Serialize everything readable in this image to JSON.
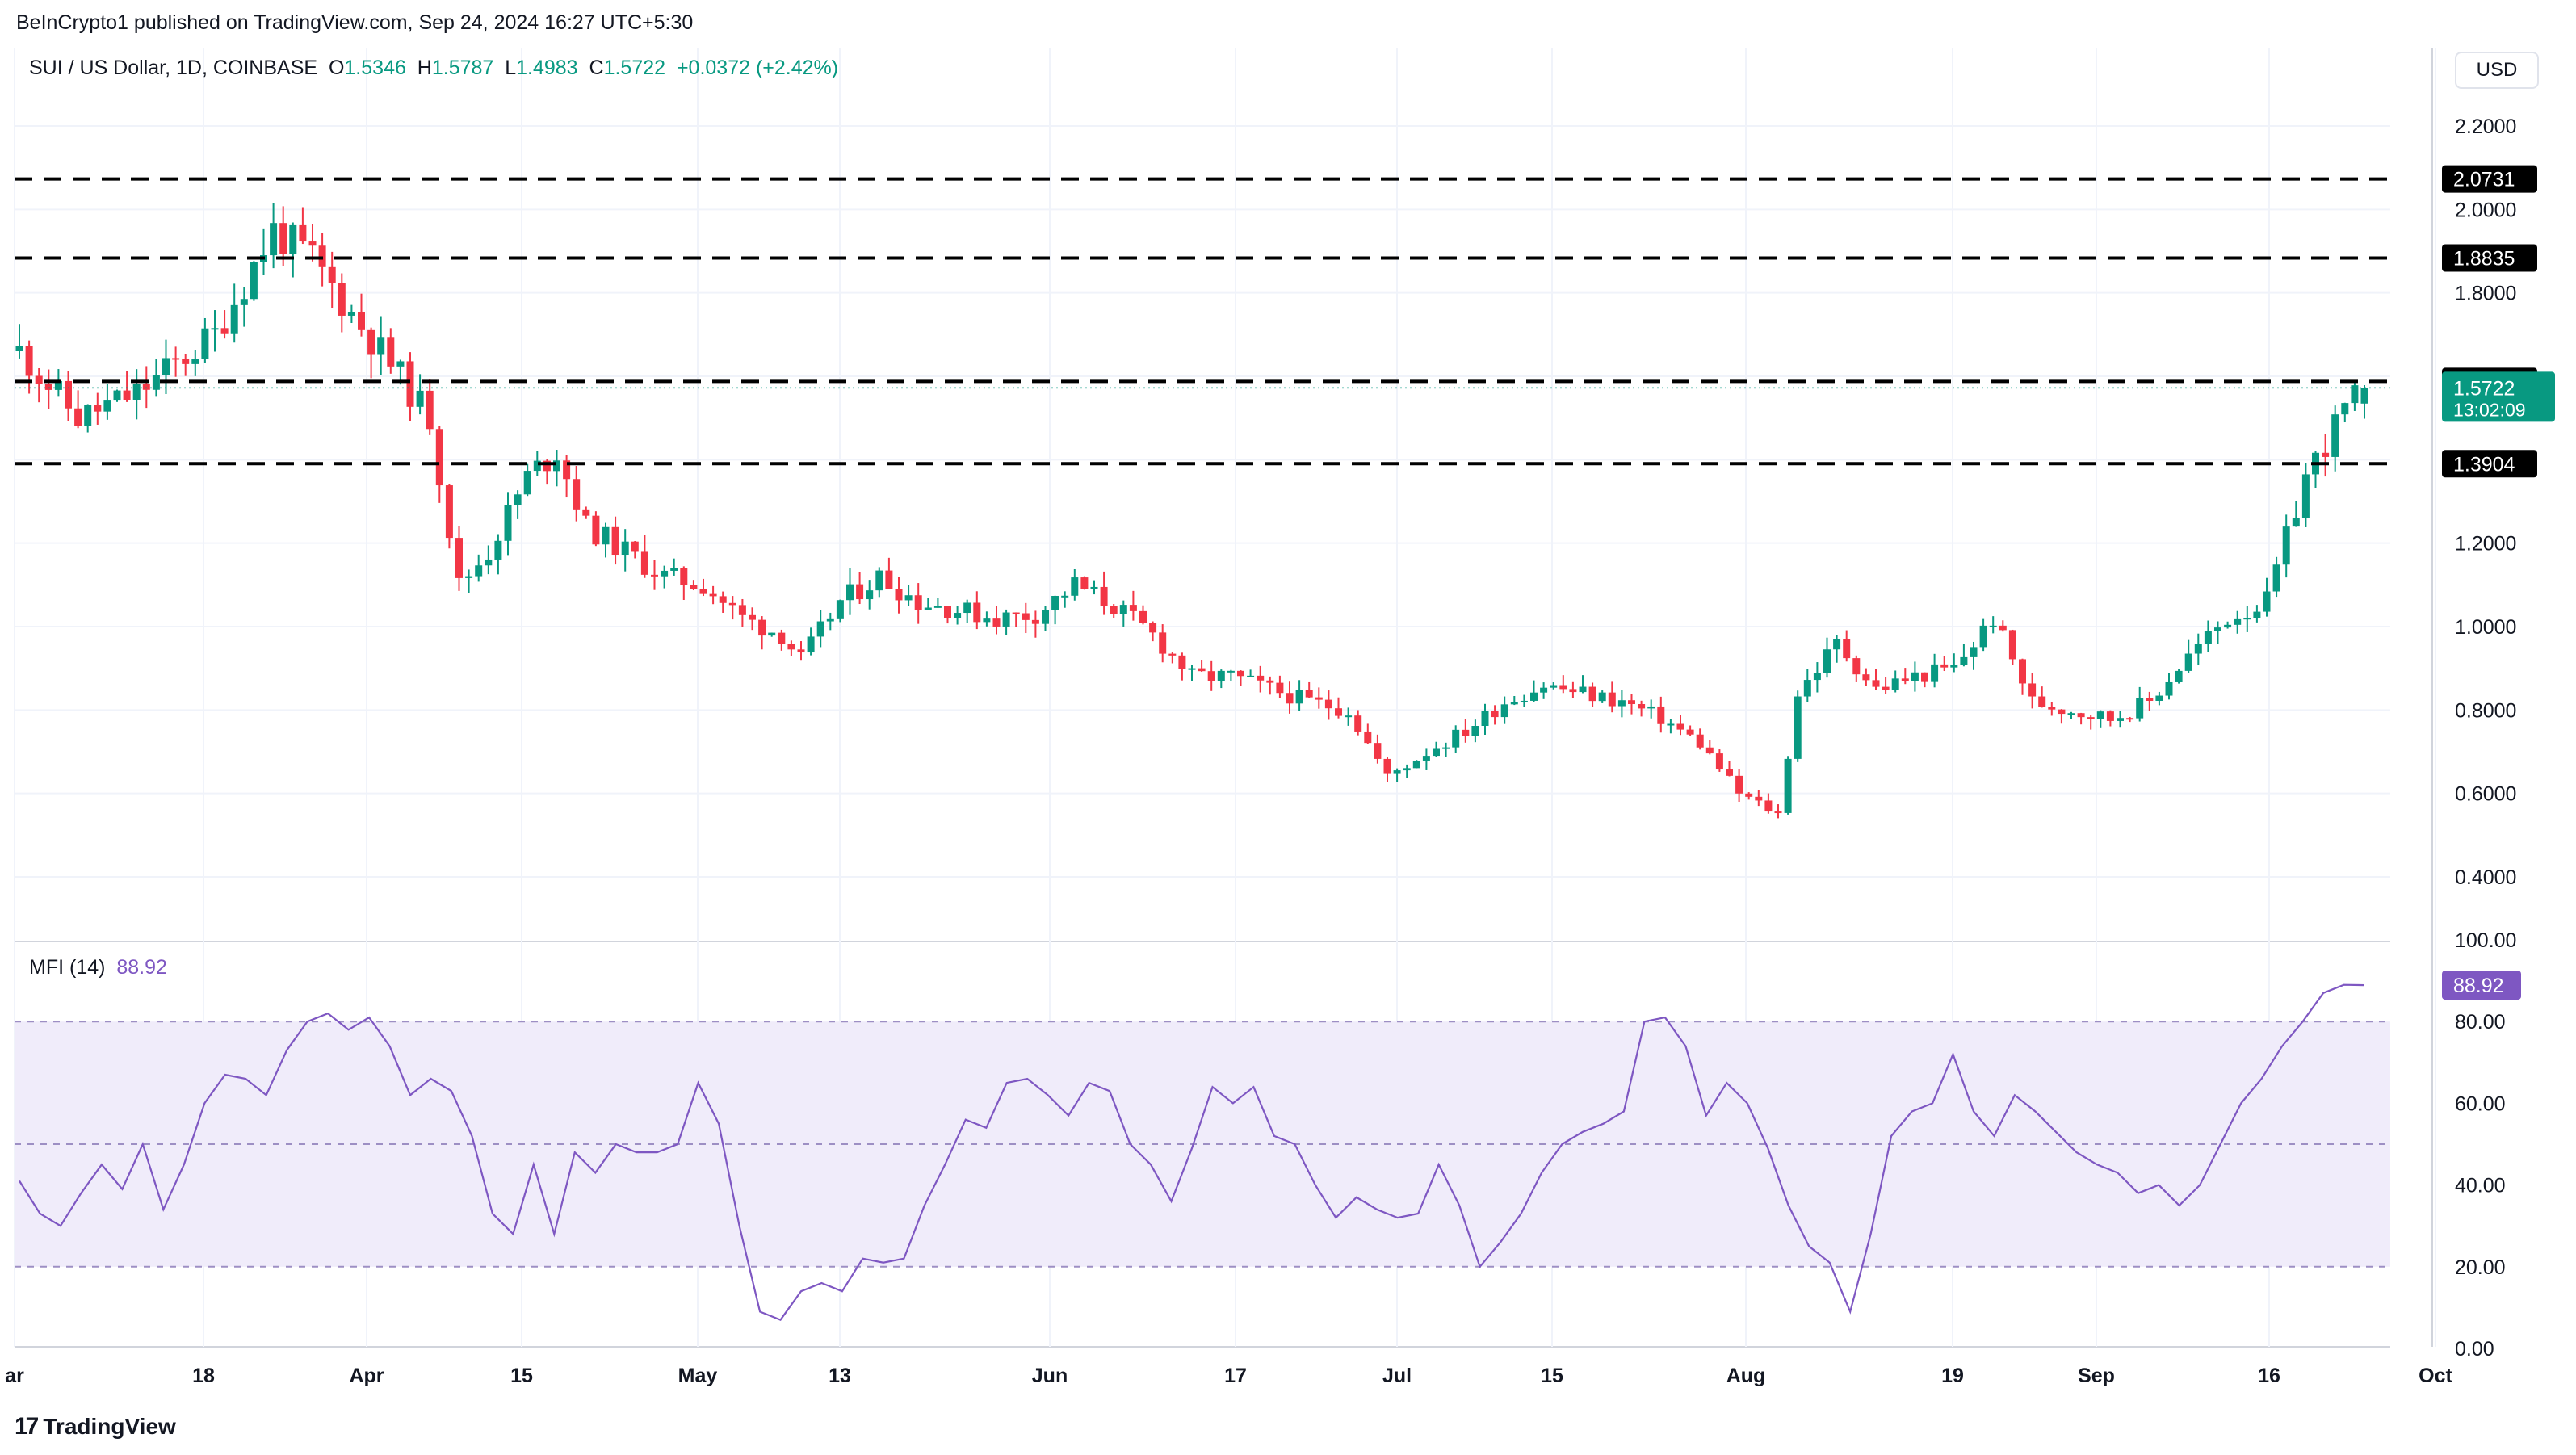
{
  "header": {
    "publisher_text": "BeInCrypto1 published on TradingView.com, Sep 24, 2024 16:27 UTC+5:30"
  },
  "symbol": {
    "name": "SUI / US Dollar, 1D, COINBASE",
    "open_label": "O",
    "open": "1.5346",
    "high_label": "H",
    "high": "1.5787",
    "low_label": "L",
    "low": "1.4983",
    "close_label": "C",
    "close": "1.5722",
    "change": "+0.0372 (+2.42%)"
  },
  "currency_button": "USD",
  "price_badge": {
    "value": "1.5722",
    "countdown": "13:02:09"
  },
  "level_labels": [
    "2.0731",
    "1.8835",
    "1.5876",
    "1.3904"
  ],
  "mfi": {
    "label": "MFI (14)",
    "value": "88.92"
  },
  "footer": {
    "brand": "TradingView",
    "logo": "17"
  },
  "colors": {
    "up": "#089981",
    "down": "#f23645",
    "mfi": "#7e57c2",
    "band": "#f0ecfa"
  },
  "chart_data": [
    {
      "type": "candlestick",
      "title": "SUI / US Dollar, 1D, COINBASE",
      "x_ticks": [
        "ar",
        "18",
        "Apr",
        "15",
        "May",
        "13",
        "Jun",
        "17",
        "Jul",
        "15",
        "Aug",
        "19",
        "Sep",
        "16",
        "Oct"
      ],
      "y_ticks": [
        "2.2000",
        "2.0000",
        "1.8000",
        "1.2000",
        "1.0000",
        "0.8000",
        "0.6000",
        "0.4000"
      ],
      "ylim": [
        0.3,
        2.3
      ],
      "horizontal_levels": [
        2.0731,
        1.8835,
        1.5876,
        1.3904
      ],
      "last_price": 1.5722,
      "close_path": [
        [
          0,
          1.66
        ],
        [
          6,
          1.5
        ],
        [
          12,
          1.56
        ],
        [
          20,
          1.7
        ],
        [
          26,
          1.95
        ],
        [
          30,
          1.88
        ],
        [
          34,
          1.75
        ],
        [
          38,
          1.63
        ],
        [
          42,
          1.5
        ],
        [
          45,
          1.1
        ],
        [
          48,
          1.18
        ],
        [
          52,
          1.36
        ],
        [
          55,
          1.42
        ],
        [
          58,
          1.24
        ],
        [
          62,
          1.18
        ],
        [
          66,
          1.12
        ],
        [
          70,
          1.1
        ],
        [
          74,
          1.02
        ],
        [
          78,
          0.98
        ],
        [
          80,
          0.92
        ],
        [
          84,
          1.06
        ],
        [
          88,
          1.12
        ],
        [
          92,
          1.06
        ],
        [
          96,
          1.04
        ],
        [
          100,
          1.02
        ],
        [
          104,
          1.03
        ],
        [
          108,
          1.1
        ],
        [
          112,
          1.05
        ],
        [
          116,
          0.98
        ],
        [
          120,
          0.88
        ],
        [
          124,
          0.88
        ],
        [
          128,
          0.85
        ],
        [
          132,
          0.82
        ],
        [
          136,
          0.8
        ],
        [
          140,
          0.64
        ],
        [
          144,
          0.7
        ],
        [
          148,
          0.75
        ],
        [
          152,
          0.82
        ],
        [
          156,
          0.86
        ],
        [
          160,
          0.84
        ],
        [
          164,
          0.82
        ],
        [
          168,
          0.78
        ],
        [
          172,
          0.72
        ],
        [
          176,
          0.6
        ],
        [
          180,
          0.55
        ],
        [
          182,
          0.84
        ],
        [
          186,
          0.96
        ],
        [
          190,
          0.85
        ],
        [
          194,
          0.88
        ],
        [
          198,
          0.9
        ],
        [
          202,
          1.02
        ],
        [
          206,
          0.82
        ],
        [
          210,
          0.8
        ],
        [
          214,
          0.78
        ],
        [
          218,
          0.82
        ],
        [
          222,
          0.93
        ],
        [
          226,
          1.02
        ],
        [
          230,
          1.06
        ],
        [
          234,
          1.36
        ],
        [
          238,
          1.52
        ],
        [
          240,
          1.5722
        ]
      ],
      "last_bar": {
        "open": 1.5346,
        "high": 1.5787,
        "low": 1.4983,
        "close": 1.5722
      }
    },
    {
      "type": "line",
      "title": "MFI (14)",
      "y_ticks": [
        "100.00",
        "80.00",
        "60.00",
        "40.00",
        "20.00",
        "0.00"
      ],
      "ylim": [
        0,
        100
      ],
      "band": [
        20,
        80
      ],
      "mid_line": 50,
      "last_value": 88.92,
      "values": [
        41,
        33,
        30,
        38,
        45,
        39,
        50,
        34,
        45,
        60,
        67,
        66,
        62,
        73,
        80,
        82,
        78,
        81,
        74,
        62,
        66,
        63,
        52,
        33,
        28,
        45,
        28,
        48,
        43,
        50,
        48,
        48,
        50,
        65,
        55,
        30,
        9,
        7,
        14,
        16,
        14,
        22,
        21,
        22,
        35,
        45,
        56,
        54,
        65,
        66,
        62,
        57,
        65,
        63,
        50,
        45,
        36,
        49,
        64,
        60,
        64,
        52,
        50,
        40,
        32,
        37,
        34,
        32,
        33,
        45,
        35,
        20,
        26,
        33,
        43,
        50,
        53,
        55,
        58,
        80,
        81,
        74,
        57,
        65,
        60,
        49,
        35,
        25,
        21,
        9,
        28,
        52,
        58,
        60,
        72,
        58,
        52,
        62,
        58,
        53,
        48,
        45,
        43,
        38,
        40,
        35,
        40,
        50,
        60,
        66,
        74,
        80,
        87,
        89,
        88.92
      ]
    }
  ]
}
